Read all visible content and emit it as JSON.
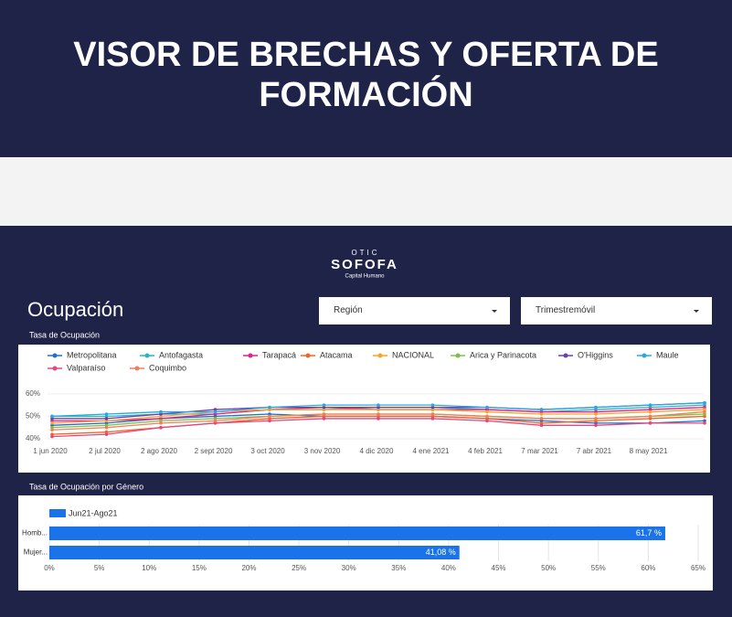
{
  "header": {
    "title": "VISOR DE BRECHAS Y OFERTA DE FORMACIÓN"
  },
  "logo": {
    "top": "OTIC",
    "name": "SOFOFA",
    "sub": "Capital Humano"
  },
  "section": {
    "title": "Ocupación"
  },
  "filters": [
    "Región",
    "Trimestremóvil"
  ],
  "chart_data": [
    {
      "type": "line",
      "title": "Tasa de Ocupación",
      "categories": [
        "1 jun 2020",
        "2 jul 2020",
        "2 ago 2020",
        "2 sept 2020",
        "3 oct 2020",
        "3 nov 2020",
        "4 dic 2020",
        "4 ene 2021",
        "4 feb 2021",
        "7 mar 2021",
        "7 abr 2021",
        "8 may 2021",
        null
      ],
      "ylim": [
        38,
        64
      ],
      "yticks": [
        {
          "value": 40,
          "label": "40%"
        },
        {
          "value": 50,
          "label": "50%"
        },
        {
          "value": 60,
          "label": "60%"
        }
      ],
      "series": [
        {
          "name": "Metropolitana",
          "color": "#1f6fd0",
          "values": [
            46,
            47,
            49,
            50,
            51,
            50,
            50,
            50,
            49,
            48,
            47,
            47,
            48
          ]
        },
        {
          "name": "Antofagasta",
          "color": "#26b5c4",
          "values": [
            50,
            50,
            51,
            51,
            53,
            53,
            54,
            54,
            53,
            52,
            53,
            54,
            55
          ]
        },
        {
          "name": "Tarapacá",
          "color": "#e91e8c",
          "values": [
            48,
            48,
            49,
            51,
            53,
            54,
            53,
            53,
            53,
            52,
            52,
            53,
            54
          ]
        },
        {
          "name": "Atacama",
          "color": "#f26522",
          "values": [
            42,
            43,
            45,
            47,
            49,
            50,
            50,
            50,
            49,
            47,
            48,
            49,
            50
          ]
        },
        {
          "name": "NACIONAL",
          "color": "#f5a623",
          "values": [
            47,
            48,
            50,
            52,
            53,
            53,
            53,
            53,
            52,
            51,
            51,
            52,
            53
          ]
        },
        {
          "name": "Arica y Parinacota",
          "color": "#7cc242",
          "values": [
            45,
            46,
            48,
            49,
            50,
            51,
            51,
            51,
            50,
            49,
            49,
            50,
            51
          ]
        },
        {
          "name": "O'Higgins",
          "color": "#6a3fb5",
          "values": [
            49,
            49,
            51,
            53,
            54,
            54,
            54,
            54,
            54,
            53,
            54,
            55,
            56
          ]
        },
        {
          "name": "Maule",
          "color": "#29a8e0",
          "values": [
            50,
            51,
            52,
            52,
            54,
            55,
            55,
            55,
            54,
            53,
            54,
            55,
            56
          ]
        },
        {
          "name": "Valparaíso",
          "color": "#e8457a",
          "values": [
            41,
            42,
            45,
            47,
            48,
            49,
            49,
            49,
            48,
            46,
            46,
            47,
            47
          ]
        },
        {
          "name": "Coquimbo",
          "color": "#f47c5c",
          "values": [
            44,
            45,
            47,
            48,
            50,
            51,
            51,
            51,
            50,
            49,
            49,
            50,
            52
          ]
        }
      ]
    },
    {
      "type": "hbar",
      "title": "Tasa de Ocupación por Género",
      "categories": [
        "Homb...",
        "Mujer..."
      ],
      "series": [
        {
          "name": "Jun21-Ago21",
          "color": "#1a73e8",
          "values": [
            61.7,
            41.08
          ],
          "value_labels": [
            "61,7 %",
            "41,08 %"
          ]
        }
      ],
      "xlim": [
        0,
        65
      ],
      "xticks": [
        {
          "value": 0,
          "label": "0%"
        },
        {
          "value": 5,
          "label": "5%"
        },
        {
          "value": 10,
          "label": "10%"
        },
        {
          "value": 15,
          "label": "15%"
        },
        {
          "value": 20,
          "label": "20%"
        },
        {
          "value": 25,
          "label": "25%"
        },
        {
          "value": 30,
          "label": "30%"
        },
        {
          "value": 35,
          "label": "35%"
        },
        {
          "value": 40,
          "label": "40%"
        },
        {
          "value": 45,
          "label": "45%"
        },
        {
          "value": 50,
          "label": "50%"
        },
        {
          "value": 55,
          "label": "55%"
        },
        {
          "value": 60,
          "label": "60%"
        },
        {
          "value": 65,
          "label": "65%"
        }
      ],
      "grid": true
    }
  ]
}
